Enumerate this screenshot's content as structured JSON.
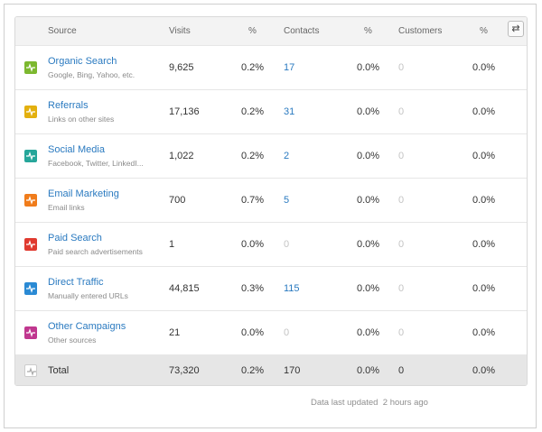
{
  "table": {
    "headers": {
      "source": "Source",
      "visits": "Visits",
      "visits_pct": "%",
      "contacts": "Contacts",
      "contacts_pct": "%",
      "customers": "Customers",
      "customers_pct": "%"
    },
    "toggle_icon": "swap-arrows-icon",
    "rows": [
      {
        "name": "Organic Search",
        "sub": "Google, Bing, Yahoo, etc.",
        "visits": "9,625",
        "visits_pct": "0.2%",
        "contacts": "17",
        "contacts_pct": "0.0%",
        "customers": "0",
        "customers_pct": "0.0%",
        "color": "#7cb82f"
      },
      {
        "name": "Referrals",
        "sub": "Links on other sites",
        "visits": "17,136",
        "visits_pct": "0.2%",
        "contacts": "31",
        "contacts_pct": "0.0%",
        "customers": "0",
        "customers_pct": "0.0%",
        "color": "#e3b00f"
      },
      {
        "name": "Social Media",
        "sub": "Facebook, Twitter, LinkedI...",
        "visits": "1,022",
        "visits_pct": "0.2%",
        "contacts": "2",
        "contacts_pct": "0.0%",
        "customers": "0",
        "customers_pct": "0.0%",
        "color": "#26a69a"
      },
      {
        "name": "Email Marketing",
        "sub": "Email links",
        "visits": "700",
        "visits_pct": "0.7%",
        "contacts": "5",
        "contacts_pct": "0.0%",
        "customers": "0",
        "customers_pct": "0.0%",
        "color": "#f07c1b"
      },
      {
        "name": "Paid Search",
        "sub": "Paid search advertisements",
        "visits": "1",
        "visits_pct": "0.0%",
        "contacts": "0",
        "contacts_pct": "0.0%",
        "customers": "0",
        "customers_pct": "0.0%",
        "color": "#e03a2f"
      },
      {
        "name": "Direct Traffic",
        "sub": "Manually entered URLs",
        "visits": "44,815",
        "visits_pct": "0.3%",
        "contacts": "115",
        "contacts_pct": "0.0%",
        "customers": "0",
        "customers_pct": "0.0%",
        "color": "#2a8ad4"
      },
      {
        "name": "Other Campaigns",
        "sub": "Other sources",
        "visits": "21",
        "visits_pct": "0.0%",
        "contacts": "0",
        "contacts_pct": "0.0%",
        "customers": "0",
        "customers_pct": "0.0%",
        "color": "#c0378f"
      }
    ],
    "total": {
      "label": "Total",
      "visits": "73,320",
      "visits_pct": "0.2%",
      "contacts": "170",
      "contacts_pct": "0.0%",
      "customers": "0",
      "customers_pct": "0.0%"
    }
  },
  "footer": {
    "label": "Data last updated",
    "value": "2 hours ago"
  }
}
